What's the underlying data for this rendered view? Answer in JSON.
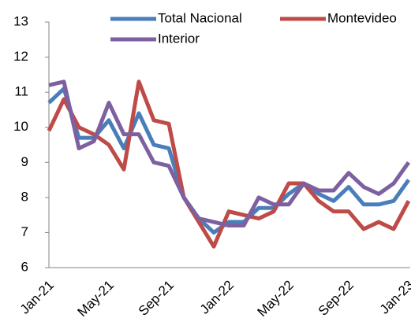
{
  "chart_data": {
    "type": "line",
    "categories": [
      "Jan-21",
      null,
      null,
      null,
      "May-21",
      null,
      null,
      null,
      "Sep-21",
      null,
      null,
      null,
      "Jan-22",
      null,
      null,
      null,
      "May-22",
      null,
      null,
      null,
      "Sep-22",
      null,
      null,
      null,
      "Jan-23"
    ],
    "series": [
      {
        "name": "Total Nacional",
        "color": "#4a7ebb",
        "values": [
          10.7,
          11.1,
          9.7,
          9.7,
          10.2,
          9.4,
          10.4,
          9.5,
          9.4,
          8.0,
          7.4,
          7.0,
          7.3,
          7.3,
          7.7,
          7.7,
          8.1,
          8.4,
          8.1,
          7.9,
          8.3,
          7.8,
          7.8,
          7.9,
          8.5
        ]
      },
      {
        "name": "Montevideo",
        "color": "#be4b48",
        "values": [
          9.9,
          10.8,
          10.0,
          9.8,
          9.5,
          8.8,
          11.3,
          10.2,
          10.1,
          8.0,
          7.3,
          6.6,
          7.6,
          7.5,
          7.4,
          7.6,
          8.4,
          8.4,
          7.9,
          7.6,
          7.6,
          7.1,
          7.3,
          7.1,
          7.9
        ]
      },
      {
        "name": "Interior",
        "color": "#7d60a0",
        "values": [
          11.2,
          11.3,
          9.4,
          9.6,
          10.7,
          9.8,
          9.8,
          9.0,
          8.9,
          8.0,
          7.4,
          7.3,
          7.2,
          7.2,
          8.0,
          7.8,
          7.8,
          8.4,
          8.2,
          8.2,
          8.7,
          8.3,
          8.1,
          8.4,
          9.0
        ]
      }
    ],
    "ylim": [
      6,
      13
    ],
    "yticks": [
      6,
      7,
      8,
      9,
      10,
      11,
      12,
      13
    ],
    "grid": false
  }
}
